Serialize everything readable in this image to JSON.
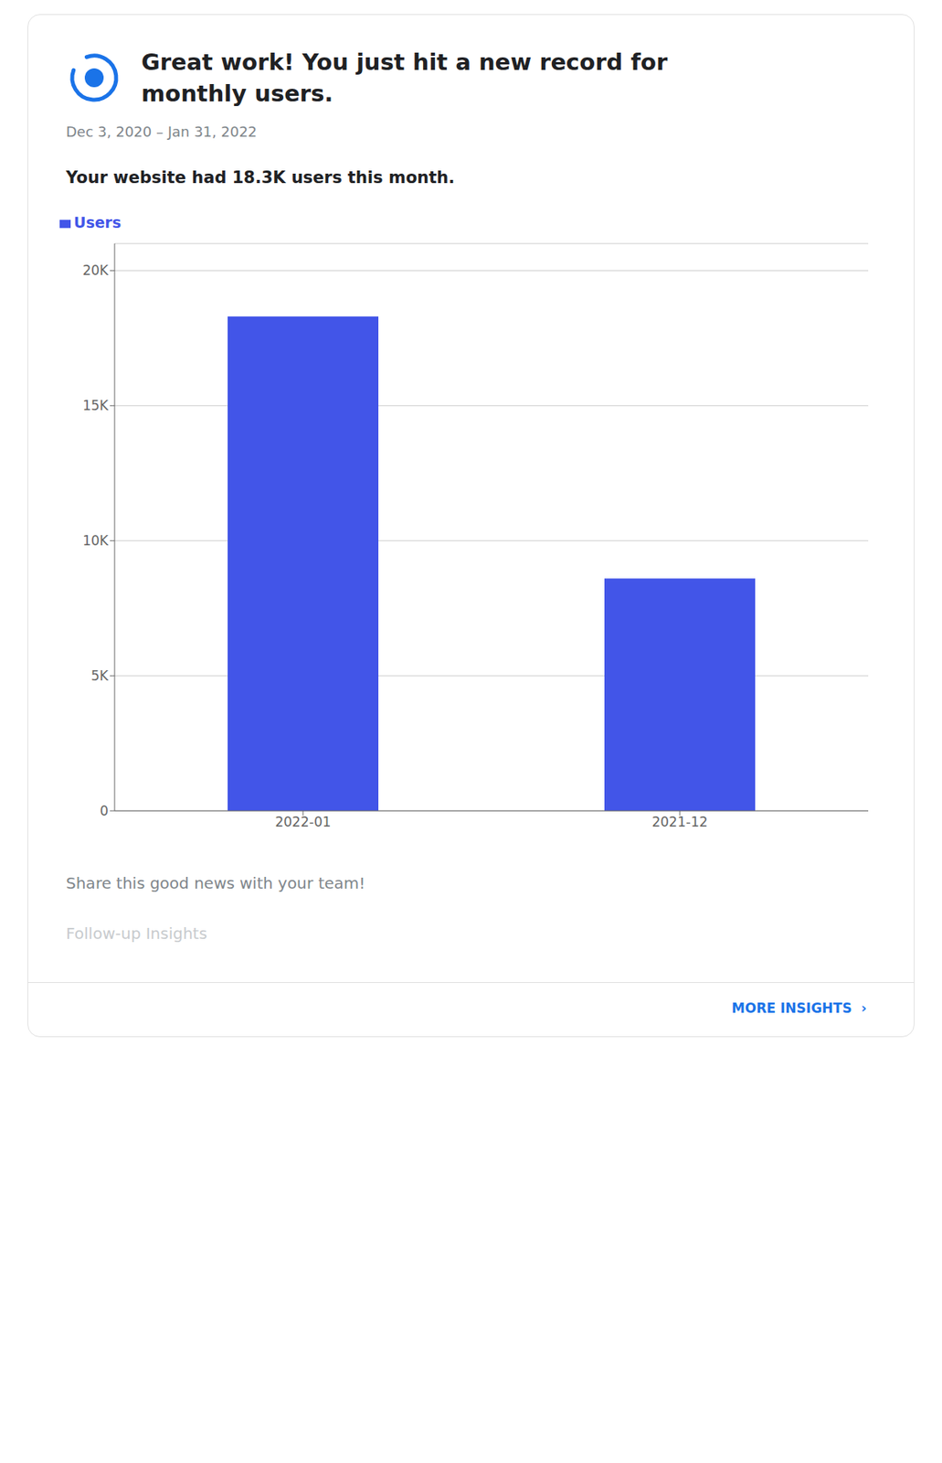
{
  "chart_data": {
    "type": "bar",
    "title": "Great work! You just hit a new record for monthly users.",
    "subtitle": "Your website had 18.3K users this month.",
    "annotations": [
      "Dec 3, 2020 – Jan 31, 2022",
      "Share this good news with your team!",
      "Follow-up Insights",
      "MORE INSIGHTS  ›"
    ],
    "categories": [
      "2022-01",
      "2021-12"
    ],
    "series": [
      {
        "name": "Users",
        "color": "#4255e8",
        "values": [
          18300,
          8600
        ]
      }
    ],
    "ylim": [
      0,
      21000
    ],
    "yticks": [
      0,
      {
        "value": 5000,
        "label": "5K"
      },
      {
        "value": 10000,
        "label": "10K"
      },
      {
        "value": 15000,
        "label": "15K"
      },
      {
        "value": 20000,
        "label": "20K"
      }
    ],
    "grid": true,
    "legend": "top left",
    "tick_labels": true
  }
}
